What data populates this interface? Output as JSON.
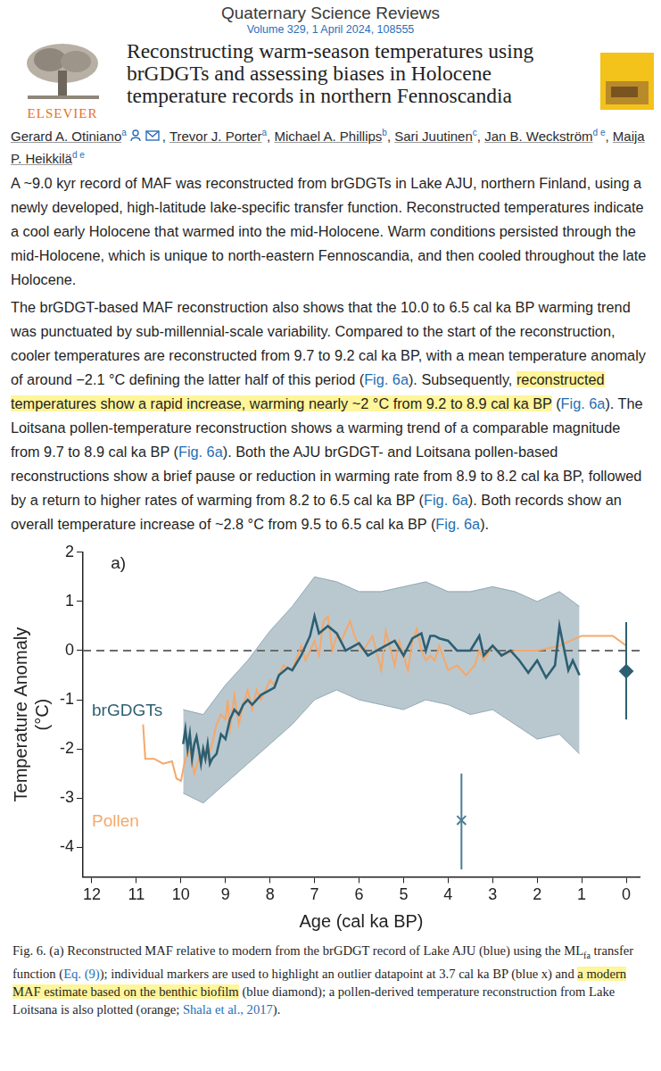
{
  "header": {
    "journal": "Quaternary Science Reviews",
    "volume": "Volume 329, 1 April 2024, 108555",
    "publisher": "ELSEVIER",
    "title": "Reconstructing warm-season temperatures using brGDGTs and assessing biases in Holocene temperature records in northern Fennoscandia",
    "authors": [
      {
        "name": "Gerard A. Otiniano",
        "sup": "a",
        "sep": ", "
      },
      {
        "name": "Trevor J. Porter",
        "sup": "a",
        "sep": ", "
      },
      {
        "name": "Michael A. Phillips",
        "sup": "b",
        "sep": ", "
      },
      {
        "name": "Sari Juutinen",
        "sup": "c",
        "sep": ", "
      },
      {
        "name": "Jan B. Weckström",
        "sup": "d e",
        "sep": ", "
      },
      {
        "name": "Maija P. Heikkilä",
        "sup": "d e"
      }
    ]
  },
  "paragraphs": [
    [
      "A ~9.0 kyr record of MAF was reconstructed from brGDGTs in Lake AJU, northern Finland, using a newly developed, high-latitude lake-specific transfer function. Reconstructed temperatures indicate a cool early Holocene that warmed into the mid-Holocene. Warm conditions persisted through the mid-Holocene, which is unique to north-eastern Fennoscandia, and then cooled throughout the late Holocene."
    ],
    [
      "The brGDGT-based MAF reconstruction also shows that the 10.0 to 6.5 cal ka BP warming trend was punctuated by sub-millennial-scale variability. Compared to the start of the reconstruction, cooler temperatures are reconstructed from 9.7 to 9.2 cal ka BP, with a mean temperature anomaly of around −2.1 °C defining the latter half of this period (",
      {
        "text": "Fig. 6a",
        "style": "link"
      },
      "). Subsequently, ",
      {
        "text": "reconstructed temperatures show a rapid increase, warming nearly ~2 °C from 9.2 to 8.9 cal ka BP",
        "style": "highlight"
      },
      " (",
      {
        "text": "Fig. 6a",
        "style": "link"
      },
      "). The Loitsana pollen-temperature reconstruction shows a warming trend of a comparable magnitude from 9.7 to 8.9 cal ka BP (",
      {
        "text": "Fig. 6a",
        "style": "link"
      },
      "). Both the AJU brGDGT- and Loitsana pollen-based reconstructions show a brief pause or reduction in warming rate from 8.9 to 8.2 cal ka BP, followed by a return to higher rates of warming from 8.2 to 6.5 cal ka BP (",
      {
        "text": "Fig. 6a",
        "style": "link"
      },
      "). Both records show an overall temperature increase of ~2.8 °C from 9.5 to 6.5 cal ka BP (",
      {
        "text": "Fig. 6a",
        "style": "link"
      },
      ")."
    ]
  ],
  "chart_data": {
    "type": "line",
    "panel_label": "a)",
    "xlabel": "Age (cal ka BP)",
    "ylabel": [
      "Temperature Anomaly",
      "(°C)"
    ],
    "xlim": [
      12.2,
      -0.3
    ],
    "xticks": [
      12,
      11,
      10,
      9,
      8,
      7,
      6,
      5,
      4,
      3,
      2,
      1,
      0
    ],
    "ylim": [
      -4.6,
      2
    ],
    "yticks": [
      -4,
      -3,
      -2,
      -1,
      0,
      1,
      2
    ],
    "grid": false,
    "reference_line": {
      "y": 0,
      "line_style": "dashed",
      "color": "#6b6b6b"
    },
    "uncertainty": {
      "color": "#7f9aa8",
      "x": [
        9.95,
        9.5,
        9.0,
        8.5,
        8.0,
        7.5,
        7.0,
        6.5,
        6.0,
        5.5,
        5.0,
        4.5,
        4.0,
        3.5,
        3.0,
        2.5,
        2.0,
        1.5,
        1.05
      ],
      "upper": [
        -1.2,
        -1.3,
        -0.7,
        -0.2,
        0.4,
        0.9,
        1.5,
        1.4,
        1.2,
        1.2,
        1.3,
        1.4,
        1.2,
        1.2,
        1.3,
        1.2,
        1.0,
        1.2,
        0.9
      ],
      "lower": [
        -2.9,
        -3.1,
        -2.7,
        -2.3,
        -1.9,
        -1.5,
        -1.0,
        -0.8,
        -1.0,
        -1.1,
        -1.2,
        -1.0,
        -1.1,
        -1.3,
        -1.2,
        -1.5,
        -1.8,
        -1.7,
        -2.1
      ]
    },
    "series": [
      {
        "name": "brGDGTs",
        "color": "#2d5f72",
        "x": [
          9.95,
          9.9,
          9.85,
          9.8,
          9.75,
          9.7,
          9.65,
          9.6,
          9.55,
          9.5,
          9.45,
          9.4,
          9.35,
          9.3,
          9.2,
          9.1,
          9.0,
          8.9,
          8.8,
          8.7,
          8.6,
          8.5,
          8.4,
          8.2,
          8.0,
          7.9,
          7.8,
          7.6,
          7.5,
          7.3,
          7.1,
          7.0,
          6.9,
          6.7,
          6.5,
          6.3,
          6.0,
          5.8,
          5.6,
          5.4,
          5.2,
          5.0,
          4.8,
          4.6,
          4.5,
          4.4,
          4.3,
          4.2,
          4.0,
          3.8,
          3.5,
          3.3,
          3.2,
          3.0,
          2.8,
          2.6,
          2.4,
          2.2,
          2.0,
          1.8,
          1.6,
          1.5,
          1.3,
          1.2,
          1.05
        ],
        "values": [
          -1.9,
          -1.6,
          -2.0,
          -1.7,
          -2.2,
          -1.9,
          -1.75,
          -2.0,
          -2.3,
          -2.0,
          -2.2,
          -1.9,
          -2.3,
          -2.2,
          -2.1,
          -1.7,
          -1.8,
          -1.4,
          -1.2,
          -1.3,
          -1.1,
          -1.0,
          -1.1,
          -0.9,
          -0.8,
          -0.75,
          -0.5,
          -0.35,
          -0.4,
          -0.1,
          0.3,
          0.7,
          0.35,
          0.5,
          0.35,
          0.0,
          0.15,
          -0.1,
          0.0,
          0.1,
          0.2,
          -0.1,
          0.25,
          0.35,
          0.0,
          0.3,
          0.3,
          0.25,
          0.2,
          0.0,
          0.0,
          0.3,
          -0.1,
          0.1,
          -0.1,
          0.0,
          -0.2,
          -0.45,
          -0.2,
          -0.55,
          -0.3,
          0.5,
          -0.4,
          -0.2,
          -0.5
        ]
      },
      {
        "name": "Pollen",
        "color": "#f5a86a",
        "x": [
          10.85,
          10.8,
          10.6,
          10.4,
          10.2,
          10.1,
          10.0,
          9.9,
          9.8,
          9.7,
          9.6,
          9.5,
          9.4,
          9.3,
          9.2,
          9.1,
          9.0,
          8.95,
          8.9,
          8.8,
          8.7,
          8.6,
          8.5,
          8.4,
          8.3,
          8.2,
          8.0,
          7.9,
          7.7,
          7.5,
          7.3,
          7.2,
          7.0,
          6.9,
          6.8,
          6.7,
          6.6,
          6.5,
          6.4,
          6.2,
          6.1,
          6.0,
          5.9,
          5.7,
          5.5,
          5.4,
          5.2,
          5.1,
          5.0,
          4.9,
          4.8,
          4.7,
          4.6,
          4.5,
          4.4,
          4.3,
          4.2,
          4.0,
          3.8,
          3.6,
          3.4,
          3.3,
          3.2,
          3.0,
          2.8,
          2.5,
          2.0,
          1.5,
          1.0,
          0.3,
          0.0
        ],
        "values": [
          -1.5,
          -2.2,
          -2.2,
          -2.3,
          -2.25,
          -2.6,
          -2.65,
          -2.2,
          -2.0,
          -2.5,
          -2.2,
          -2.0,
          -2.2,
          -1.9,
          -1.5,
          -1.3,
          -1.4,
          -1.0,
          -1.6,
          -0.9,
          -1.5,
          -1.1,
          -0.8,
          -1.2,
          -0.8,
          -1.0,
          -0.6,
          -0.7,
          -0.3,
          -0.4,
          0.1,
          -0.2,
          0.2,
          -0.1,
          0.6,
          0.7,
          0.0,
          0.3,
          0.2,
          0.6,
          0.3,
          0.1,
          0.0,
          0.3,
          -0.4,
          0.4,
          -0.3,
          0.2,
          -0.1,
          -0.4,
          0.2,
          0.45,
          0.0,
          -0.2,
          -0.1,
          -0.2,
          0.1,
          -0.4,
          -0.3,
          -0.5,
          -0.3,
          0.0,
          -0.2,
          0.1,
          -0.1,
          0.0,
          0.0,
          0.1,
          0.3,
          0.3,
          0.1
        ]
      }
    ],
    "markers": [
      {
        "x": 3.7,
        "y": -3.45,
        "error": [
          -4.45,
          -2.5
        ],
        "marker": "x",
        "color": "#4a7d96"
      },
      {
        "x": 0,
        "y": -0.42,
        "error": [
          -1.4,
          0.58
        ],
        "marker": "diamond",
        "color": "#2d5f72"
      }
    ]
  },
  "caption": [
    "Fig. 6. (a) Reconstructed MAF relative to modern from the brGDGT record of Lake AJU (blue) using the ML",
    {
      "text": "fa",
      "style": "sub"
    },
    " transfer function (",
    {
      "text": "Eq. (9)",
      "style": "link"
    },
    "); individual markers are used to highlight an outlier datapoint at 3.7 cal ka BP (blue x) and ",
    {
      "text": "a modern MAF estimate based on the benthic biofilm",
      "style": "highlight"
    },
    " (blue diamond); a pollen-derived temperature reconstruction from Lake Loitsana is also plotted (orange; ",
    {
      "text": "Shala et al., 2017",
      "style": "link"
    },
    ")."
  ]
}
